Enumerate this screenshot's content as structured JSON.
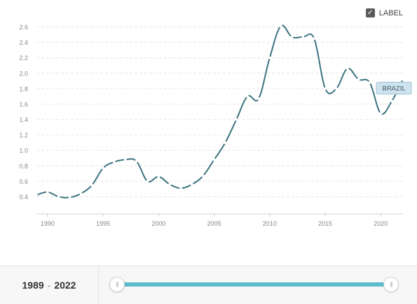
{
  "toggle": {
    "label": "LABEL",
    "checked": true
  },
  "range": {
    "start": "1989",
    "separator": "-",
    "end": "2022"
  },
  "colors": {
    "line": "#3d7480",
    "grid": "#e6e6e6",
    "axis_text": "#888888",
    "tag_bg": "#cfe3ee",
    "tag_border": "#9cc3d6",
    "slider": "#5bbccd"
  },
  "chart_data": {
    "type": "line",
    "title": "",
    "xlabel": "",
    "ylabel": "",
    "xlim": [
      1989,
      2022
    ],
    "ylim": [
      0.25,
      2.75
    ],
    "x_ticks": [
      1990,
      1995,
      2000,
      2005,
      2010,
      2015,
      2020
    ],
    "y_ticks": [
      0.4,
      0.6,
      0.8,
      1.0,
      1.2,
      1.4,
      1.6,
      1.8,
      2.0,
      2.2,
      2.4,
      2.6
    ],
    "y_tick_labels": [
      "0.4",
      "0.6",
      "0.8",
      "1.0",
      "1.2",
      "1.4",
      "1.6",
      "1.8",
      "2.0",
      "2.2",
      "2.4",
      "2.6"
    ],
    "grid": true,
    "series": [
      {
        "name": "BRAZIL",
        "x": [
          1989,
          1990,
          1991,
          1992,
          1993,
          1994,
          1995,
          1996,
          1997,
          1998,
          1999,
          2000,
          2001,
          2002,
          2003,
          2004,
          2005,
          2006,
          2007,
          2008,
          2009,
          2010,
          2011,
          2012,
          2013,
          2014,
          2015,
          2016,
          2017,
          2018,
          2019,
          2020,
          2021,
          2022
        ],
        "y": [
          0.42,
          0.46,
          0.4,
          0.39,
          0.44,
          0.55,
          0.77,
          0.85,
          0.88,
          0.86,
          0.6,
          0.66,
          0.56,
          0.51,
          0.56,
          0.67,
          0.88,
          1.1,
          1.4,
          1.7,
          1.67,
          2.2,
          2.61,
          2.47,
          2.47,
          2.45,
          1.8,
          1.8,
          2.06,
          1.92,
          1.88,
          1.48,
          1.64,
          1.92
        ]
      }
    ]
  }
}
